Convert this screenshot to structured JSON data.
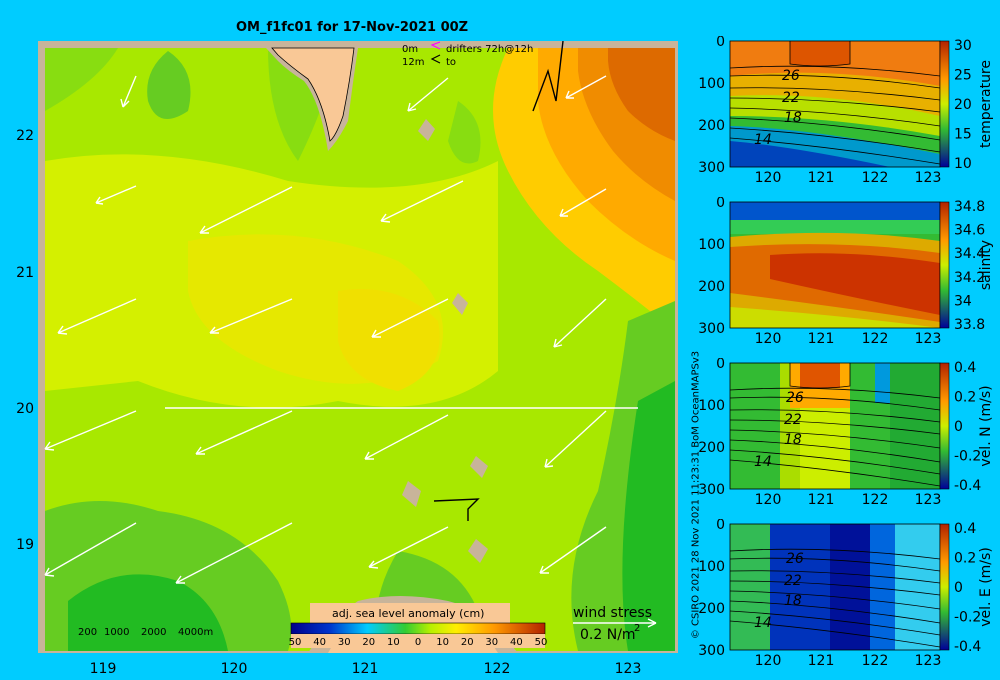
{
  "title": "OM_f1fc01 for 17-Nov-2021 00Z",
  "drifter_legend": {
    "row1_depth": "0m",
    "row1_label": "drifters 72h@12h",
    "row2_depth": "12m",
    "row2_label": "to"
  },
  "depth_legend": [
    "200",
    "1000",
    "2000",
    "4000m"
  ],
  "colorbar": {
    "label": "adj. sea level anomaly (cm)",
    "ticks": [
      "50",
      "40",
      "30",
      "20",
      "10",
      "0",
      "10",
      "20",
      "30",
      "40",
      "50"
    ]
  },
  "wind_stress": {
    "label": "wind stress",
    "value": "0.2 N/m",
    "superscript": "2"
  },
  "map_axes": {
    "x_ticks": [
      "119",
      "120",
      "121",
      "122",
      "123"
    ],
    "y_ticks": [
      "22",
      "21",
      "20",
      "19"
    ]
  },
  "section_panels": [
    {
      "id": "temperature",
      "label": "temperature",
      "cb_ticks": [
        "30",
        "25",
        "20",
        "15",
        "10"
      ],
      "contour_labels": [
        "26",
        "22",
        "18",
        "14"
      ]
    },
    {
      "id": "salinity",
      "label": "salinity",
      "cb_ticks": [
        "34.8",
        "34.6",
        "34.4",
        "34.2",
        "34",
        "33.8"
      ],
      "contour_labels": []
    },
    {
      "id": "vel_n",
      "label": "vel. N (m/s)",
      "cb_ticks": [
        "0.4",
        "0.2",
        "0",
        "-0.2",
        "-0.4"
      ],
      "contour_labels": [
        "26",
        "22",
        "18",
        "14"
      ]
    },
    {
      "id": "vel_e",
      "label": "vel. E (m/s)",
      "cb_ticks": [
        "0.4",
        "0.2",
        "0",
        "-0.2",
        "-0.4"
      ],
      "contour_labels": [
        "26",
        "22",
        "18",
        "14"
      ]
    }
  ],
  "panel_axes": {
    "x_ticks": [
      "120",
      "121",
      "122",
      "123"
    ],
    "y_ticks": [
      "0",
      "100",
      "200",
      "300"
    ]
  },
  "copyright": "© CSIRO 2021   28 Nov 2021 11:23:31 BoM OceanMAPSv3",
  "colors": {
    "background": "#00ccff",
    "land": "#f9c896",
    "shelf": "#c8b49a",
    "sla_negative": "#66cc11",
    "sla_zero": "#b8f000",
    "sla_positive": "#ff8800"
  }
}
